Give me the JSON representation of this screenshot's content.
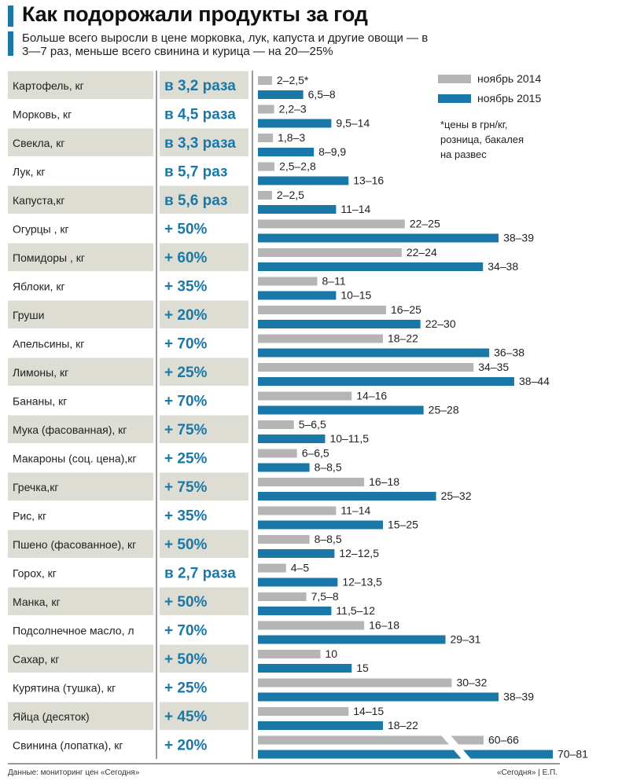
{
  "title": "Как подорожали продукты за год",
  "subtitle": "Больше всего выросли в цене морковка, лук, капуста и другие овощи — в 3—7 раз, меньше всего свинина и курица — на 20—25%",
  "footer": {
    "source": "Данные: мониторинг цен «Сегодня»",
    "credit": "«Сегодня» | Е.П."
  },
  "colors": {
    "nov2014": "#b5b5b5",
    "nov2015": "#1a78a8",
    "row_shade": "#ddddd4",
    "change_text": "#1a78a8"
  },
  "chart_data": {
    "type": "bar",
    "orientation": "horizontal",
    "legend": {
      "position": "top-right",
      "items": [
        {
          "name": "ноябрь 2014",
          "color": "#b5b5b5"
        },
        {
          "name": "ноябрь 2015",
          "color": "#1a78a8"
        }
      ],
      "note": "*цены в грн/кг, розница, бакалея на развес"
    },
    "axis_break": "Свинина (лопатка), кг",
    "series": [
      {
        "name": "ноябрь 2014",
        "values": [
          2.25,
          2.6,
          2.4,
          2.65,
          2.25,
          23.5,
          23,
          9.5,
          20.5,
          20,
          34.5,
          15,
          5.75,
          6.25,
          17,
          12.5,
          8.25,
          4.5,
          7.75,
          17,
          10,
          31,
          14.5,
          63
        ]
      },
      {
        "name": "ноябрь 2015",
        "values": [
          7.25,
          11.75,
          8.95,
          14.5,
          12.5,
          38.5,
          36,
          12.5,
          26,
          37,
          41,
          26.5,
          10.75,
          8.25,
          28.5,
          20,
          12.25,
          12.75,
          11.75,
          30,
          15,
          38.5,
          20,
          75.5
        ]
      }
    ],
    "rows": [
      {
        "product": "Картофель, кг",
        "change": "в 3,2 раза",
        "label2014": "2–2,5*",
        "label2015": "6,5–8"
      },
      {
        "product": "Морковь, кг",
        "change": "в 4,5 раза",
        "label2014": "2,2–3",
        "label2015": "9,5–14"
      },
      {
        "product": "Свекла, кг",
        "change": "в 3,3 раза",
        "label2014": "1,8–3",
        "label2015": "8–9,9"
      },
      {
        "product": "Лук, кг",
        "change": "в 5,7 раз",
        "label2014": "2,5–2,8",
        "label2015": "13–16"
      },
      {
        "product": "Капуста,кг",
        "change": "в 5,6 раз",
        "label2014": "2–2,5",
        "label2015": "11–14"
      },
      {
        "product": "Огурцы , кг",
        "change": "+ 50%",
        "label2014": "22–25",
        "label2015": "38–39"
      },
      {
        "product": "Помидоры , кг",
        "change": "+ 60%",
        "label2014": "22–24",
        "label2015": "34–38"
      },
      {
        "product": "Яблоки, кг",
        "change": "+ 35%",
        "label2014": "8–11",
        "label2015": "10–15"
      },
      {
        "product": "Груши",
        "change": "+ 20%",
        "label2014": "16–25",
        "label2015": "22–30"
      },
      {
        "product": "Апельсины, кг",
        "change": "+ 70%",
        "label2014": "18–22",
        "label2015": "36–38"
      },
      {
        "product": "Лимоны, кг",
        "change": "+ 25%",
        "label2014": "34–35",
        "label2015": "38–44"
      },
      {
        "product": "Бананы, кг",
        "change": "+ 70%",
        "label2014": "14–16",
        "label2015": "25–28"
      },
      {
        "product": "Мука (фасованная), кг",
        "change": "+ 75%",
        "label2014": "5–6,5",
        "label2015": "10–11,5"
      },
      {
        "product": "Макароны (соц. цена),кг",
        "change": "+ 25%",
        "label2014": "6–6,5",
        "label2015": "8–8,5"
      },
      {
        "product": "Гречка,кг",
        "change": "+ 75%",
        "label2014": "16–18",
        "label2015": "25–32"
      },
      {
        "product": "Рис, кг",
        "change": "+ 35%",
        "label2014": "11–14",
        "label2015": "15–25"
      },
      {
        "product": "Пшено (фасованное), кг",
        "change": "+ 50%",
        "label2014": "8–8,5",
        "label2015": "12–12,5"
      },
      {
        "product": "Горох, кг",
        "change": "в 2,7 раза",
        "label2014": "4–5",
        "label2015": "12–13,5"
      },
      {
        "product": "Манка, кг",
        "change": "+ 50%",
        "label2014": "7,5–8",
        "label2015": "11,5–12"
      },
      {
        "product": "Подсолнечное масло, л",
        "change": "+ 70%",
        "label2014": "16–18",
        "label2015": "29–31"
      },
      {
        "product": "Сахар, кг",
        "change": "+ 50%",
        "label2014": "10",
        "label2015": "15"
      },
      {
        "product": "Курятина (тушка), кг",
        "change": "+ 25%",
        "label2014": "30–32",
        "label2015": "38–39"
      },
      {
        "product": "Яйца (десяток)",
        "change": "+ 45%",
        "label2014": "14–15",
        "label2015": "18–22"
      },
      {
        "product": "Свинина (лопатка), кг",
        "change": "+ 20%",
        "label2014": "60–66",
        "label2015": "70–81"
      }
    ]
  }
}
